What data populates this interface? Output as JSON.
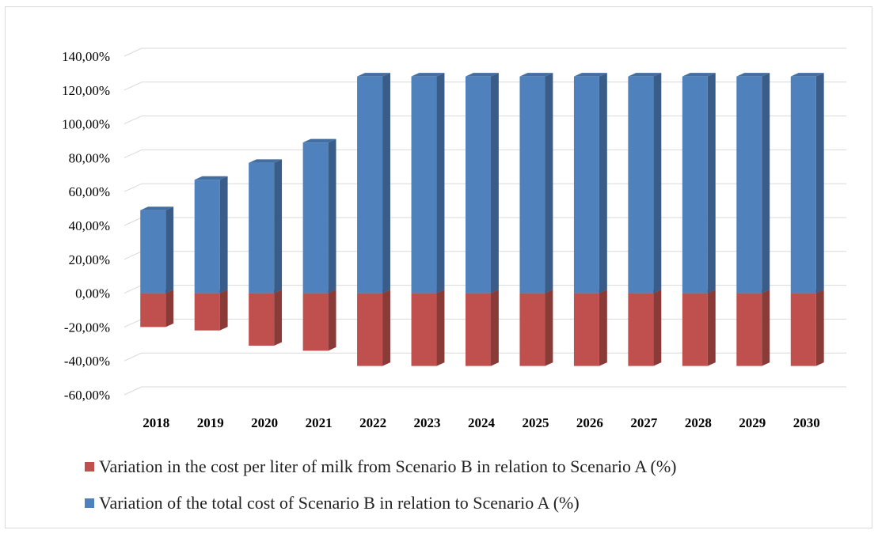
{
  "chart_data": {
    "type": "bar",
    "style": "3d-column",
    "categories": [
      "2018",
      "2019",
      "2020",
      "2021",
      "2022",
      "2023",
      "2024",
      "2025",
      "2026",
      "2027",
      "2028",
      "2029",
      "2030"
    ],
    "series": [
      {
        "name": "Variation in the cost per liter of milk from Scenario B in relation to Scenario A (%)",
        "color": "#c0504d",
        "values": [
          -20,
          -22,
          -31,
          -34,
          -43,
          -43,
          -43,
          -43,
          -43,
          -43,
          -43,
          -43,
          -43
        ]
      },
      {
        "name": "Variation of the total cost of Scenario B in relation to Scenario A (%)",
        "color": "#4f81bd",
        "values": [
          49,
          67,
          77,
          89,
          128,
          128,
          128,
          128,
          128,
          128,
          128,
          128,
          128
        ]
      }
    ],
    "ylim": [
      -60,
      140
    ],
    "yticks": [
      "-60,00%",
      "-40,00%",
      "-20,00%",
      "0,00%",
      "20,00%",
      "40,00%",
      "60,00%",
      "80,00%",
      "100,00%",
      "120,00%",
      "140,00%"
    ],
    "grid": true,
    "legend_position": "bottom"
  }
}
